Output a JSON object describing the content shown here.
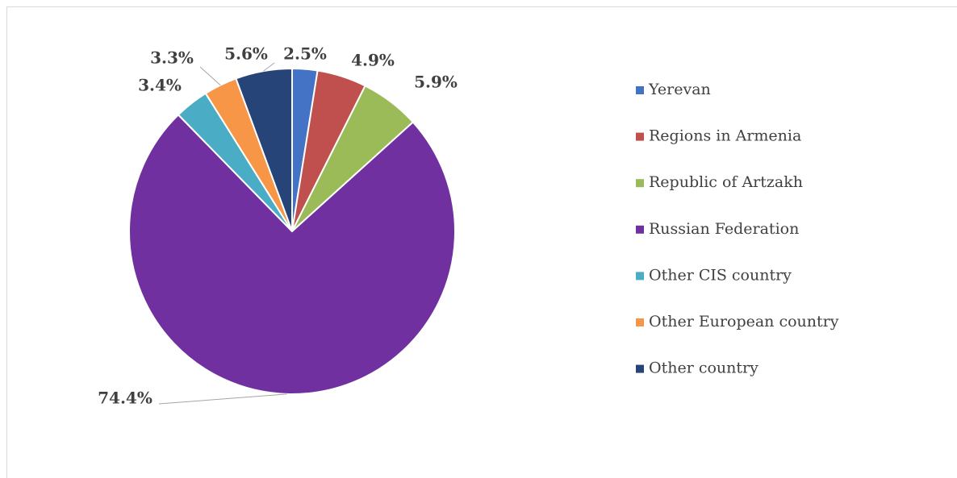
{
  "chart_data": {
    "type": "pie",
    "categories": [
      "Yerevan",
      "Regions in Armenia",
      "Republic of Artzakh",
      "Russian Federation",
      "Other CIS country",
      "Other European country",
      "Other country"
    ],
    "values": [
      2.5,
      4.9,
      5.9,
      74.4,
      3.4,
      3.3,
      5.6
    ],
    "value_labels": [
      "2.5%",
      "4.9%",
      "5.9%",
      "74.4%",
      "3.4%",
      "3.3%",
      "5.6%"
    ],
    "colors": [
      "#4472c4",
      "#c0504d",
      "#9bbb59",
      "#7030a0",
      "#4bacc6",
      "#f79646",
      "#264478"
    ],
    "legend": "right"
  }
}
